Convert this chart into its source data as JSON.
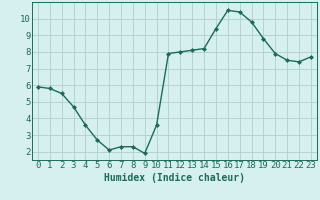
{
  "x": [
    0,
    1,
    2,
    3,
    4,
    5,
    6,
    7,
    8,
    9,
    10,
    11,
    12,
    13,
    14,
    15,
    16,
    17,
    18,
    19,
    20,
    21,
    22,
    23
  ],
  "y": [
    5.9,
    5.8,
    5.5,
    4.7,
    3.6,
    2.7,
    2.1,
    2.3,
    2.3,
    1.9,
    3.6,
    7.9,
    8.0,
    8.1,
    8.2,
    9.4,
    10.5,
    10.4,
    9.8,
    8.8,
    7.9,
    7.5,
    7.4,
    7.7
  ],
  "line_color": "#1a6b5a",
  "marker": "D",
  "markersize": 2.0,
  "linewidth": 1.0,
  "bg_color": "#d6f0ef",
  "grid_color": "#b0cece",
  "xlabel": "Humidex (Indice chaleur)",
  "xlabel_fontsize": 7,
  "tick_fontsize": 6.5,
  "ylim": [
    1.5,
    11.0
  ],
  "xlim": [
    -0.5,
    23.5
  ],
  "yticks": [
    2,
    3,
    4,
    5,
    6,
    7,
    8,
    9,
    10
  ],
  "xticks": [
    0,
    1,
    2,
    3,
    4,
    5,
    6,
    7,
    8,
    9,
    10,
    11,
    12,
    13,
    14,
    15,
    16,
    17,
    18,
    19,
    20,
    21,
    22,
    23
  ]
}
